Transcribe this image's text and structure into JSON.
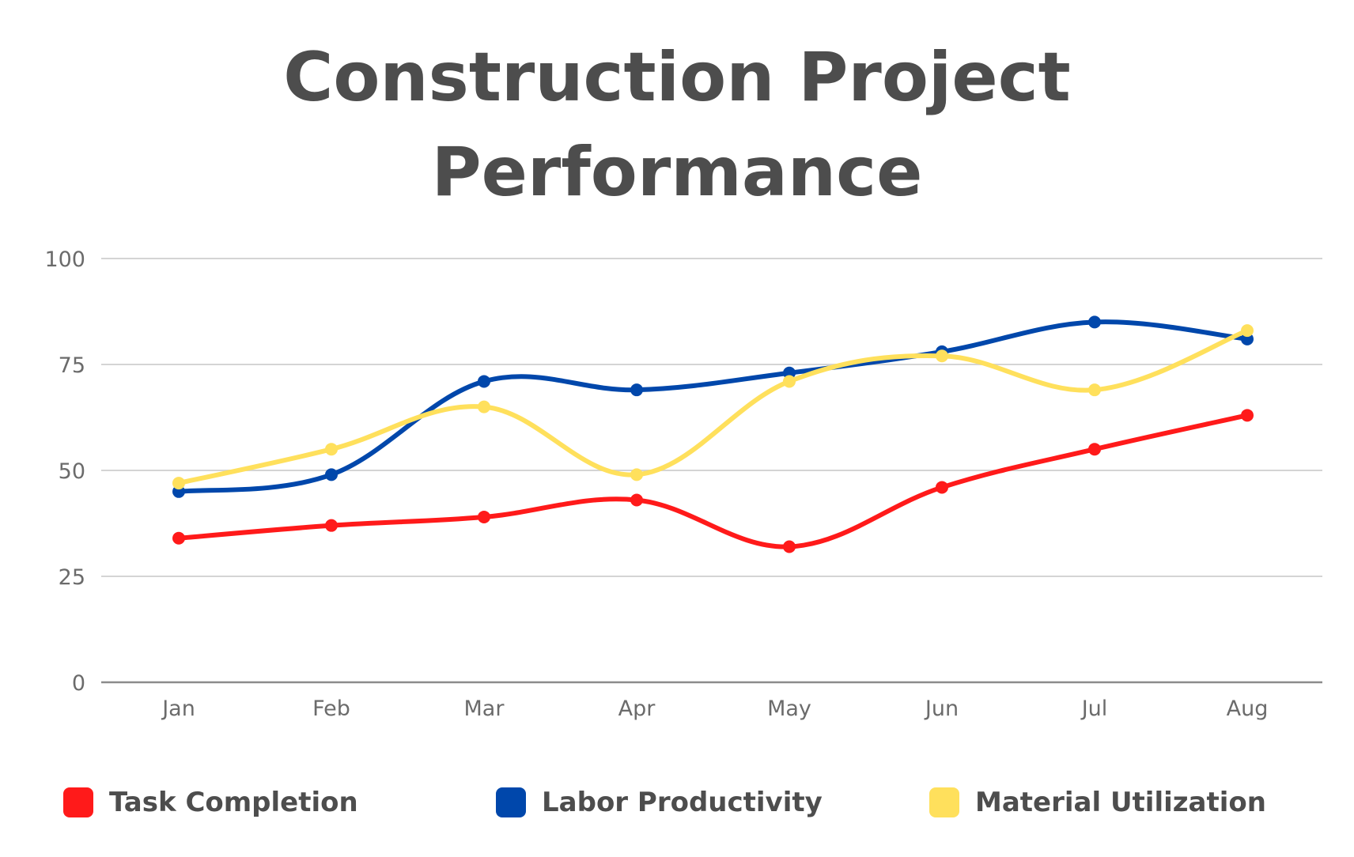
{
  "chart_data": {
    "type": "line",
    "title": "Construction Project Performance",
    "title_lines": [
      "Construction Project",
      "Performance"
    ],
    "categories": [
      "Jan",
      "Feb",
      "Mar",
      "Apr",
      "May",
      "Jun",
      "Jul",
      "Aug"
    ],
    "ylim": [
      0,
      100
    ],
    "yticks": [
      0,
      25,
      50,
      75,
      100
    ],
    "grid": true,
    "legend_position": "bottom",
    "smooth": true,
    "series": [
      {
        "name": "Task Completion",
        "color": "#ff1a1a",
        "values": [
          34,
          37,
          39,
          43,
          32,
          46,
          55,
          63
        ]
      },
      {
        "name": "Labor Productivity",
        "color": "#0047ab",
        "values": [
          45,
          49,
          71,
          69,
          73,
          78,
          85,
          81
        ]
      },
      {
        "name": "Material Utilization",
        "color": "#ffe05c",
        "values": [
          47,
          55,
          65,
          49,
          71,
          77,
          69,
          83
        ]
      }
    ]
  }
}
